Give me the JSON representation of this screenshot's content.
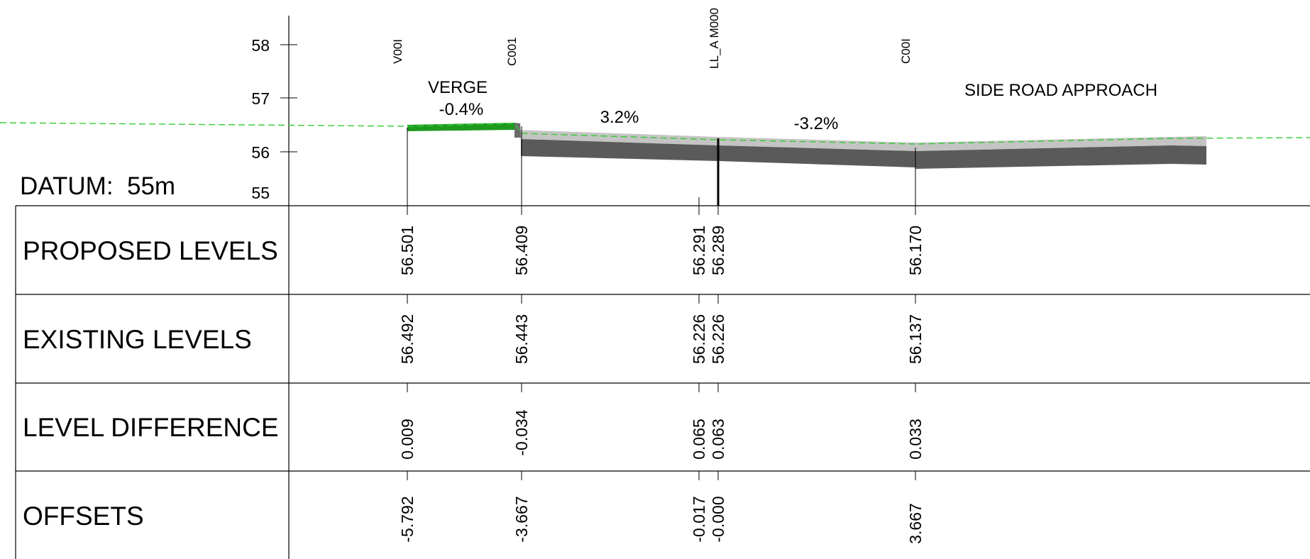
{
  "datum_label": "DATUM:  55m",
  "y_axis": {
    "ticks": [
      {
        "value": 58,
        "label": "58"
      },
      {
        "value": 57,
        "label": "57"
      },
      {
        "value": 56,
        "label": "56"
      },
      {
        "value": 55,
        "label": "55"
      }
    ]
  },
  "row_labels": [
    "PROPOSED LEVELS",
    "EXISTING LEVELS",
    "LEVEL DIFFERENCE",
    "OFFSETS"
  ],
  "annotations": {
    "verge_label": "VERGE",
    "verge_grade": "-0.4%",
    "grade_left": "3.2%",
    "grade_right": "-3.2%",
    "side_road": "SIDE ROAD APPROACH"
  },
  "colors": {
    "verge_green": "#1e9a1e",
    "existing_ground_dashed": "#33cc33",
    "pavement_dark": "#5a5a5a",
    "pavement_light": "#bdbdbd"
  },
  "stations": [
    {
      "code": "V00I",
      "offset": -5.792,
      "offset_label": "-5.792",
      "proposed": "56.501",
      "existing": "56.492",
      "difference": "0.009"
    },
    {
      "code": "C001",
      "offset": -3.667,
      "offset_label": "-3.667",
      "proposed": "56.409",
      "existing": "56.443",
      "difference": "-0.034"
    },
    {
      "code": "",
      "offset": -0.017,
      "offset_label": "-0.017",
      "proposed": "56.291",
      "existing": "56.226",
      "difference": "0.065"
    },
    {
      "code": "LL_A M000",
      "offset": 0.0,
      "offset_label": "-0.000",
      "proposed": "56.289",
      "existing": "56.226",
      "difference": "0.063"
    },
    {
      "code": "C00I",
      "offset": 3.667,
      "offset_label": "3.667",
      "proposed": "56.170",
      "existing": "56.137",
      "difference": "0.033"
    }
  ]
}
